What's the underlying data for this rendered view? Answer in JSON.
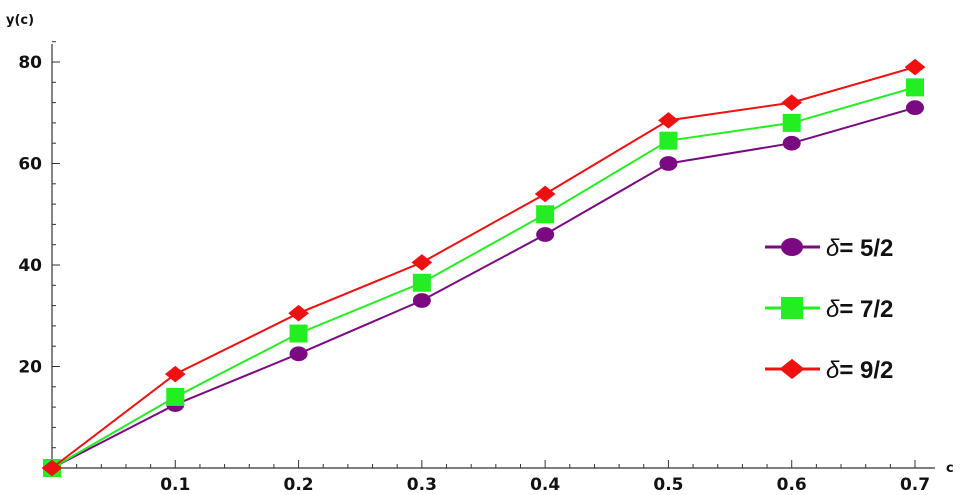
{
  "chart_data": {
    "type": "line",
    "title": "",
    "ylabel": "y(c)",
    "xlabel": "c",
    "xlim": [
      0,
      0.7
    ],
    "ylim": [
      0,
      80
    ],
    "x": [
      0,
      0.1,
      0.2,
      0.3,
      0.4,
      0.5,
      0.6,
      0.7
    ],
    "x_tick_labels": [
      "0.1",
      "0.2",
      "0.3",
      "0.4",
      "0.5",
      "0.6",
      "0.7"
    ],
    "y_tick_labels": [
      "20",
      "40",
      "60",
      "80"
    ],
    "grid": false,
    "legend_position": "right",
    "series": [
      {
        "name": "δ= 5/2",
        "delta_symbol": "δ",
        "label_value": "= 5/2",
        "marker": "circle",
        "color": "#7B0A82",
        "values": [
          0,
          12.5,
          22.5,
          33,
          46,
          60,
          64,
          71
        ]
      },
      {
        "name": "δ= 7/2",
        "delta_symbol": "δ",
        "label_value": "= 7/2",
        "marker": "square",
        "color": "#22EE22",
        "values": [
          0,
          14,
          26.5,
          36.5,
          50,
          64.5,
          68,
          75
        ]
      },
      {
        "name": "δ= 9/2",
        "delta_symbol": "δ",
        "label_value": "= 9/2",
        "marker": "diamond",
        "color": "#EE1111",
        "values": [
          0,
          18.5,
          30.5,
          40.5,
          54,
          68.5,
          72,
          79
        ]
      }
    ]
  }
}
